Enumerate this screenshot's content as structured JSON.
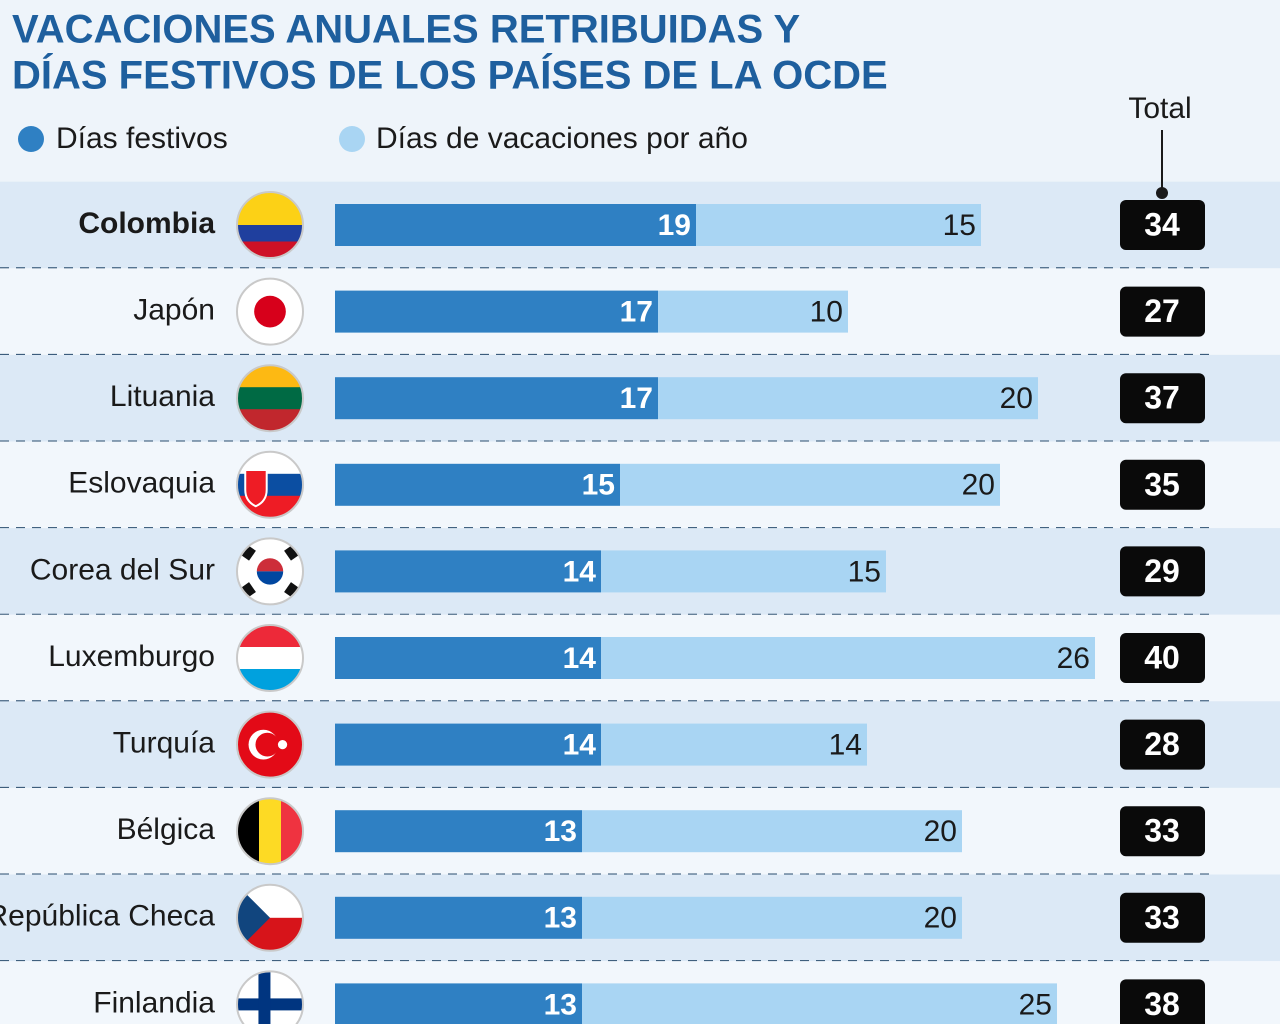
{
  "chart_data": {
    "type": "stacked-bar",
    "title": "VACACIONES ANUALES RETRIBUIDAS Y",
    "subtitle": "DÍAS FESTIVOS DE LOS PAÍSES DE LA OCDE",
    "categories": [
      "Colombia",
      "Japón",
      "Lituania",
      "Eslovaquia",
      "Corea del Sur",
      "Luxemburgo",
      "Turquía",
      "Bélgica",
      "República Checa",
      "Finlandia"
    ],
    "series": [
      {
        "name": "Días festivos",
        "color": "#2f80c3",
        "values": [
          19,
          17,
          17,
          15,
          14,
          14,
          14,
          13,
          13,
          13
        ]
      },
      {
        "name": "Días de vacaciones por año",
        "color": "#a9d5f3",
        "values": [
          15,
          10,
          20,
          20,
          15,
          26,
          14,
          20,
          20,
          25
        ]
      }
    ],
    "totals_label": "Total",
    "totals": [
      34,
      27,
      37,
      35,
      29,
      40,
      28,
      33,
      33,
      38
    ]
  }
}
